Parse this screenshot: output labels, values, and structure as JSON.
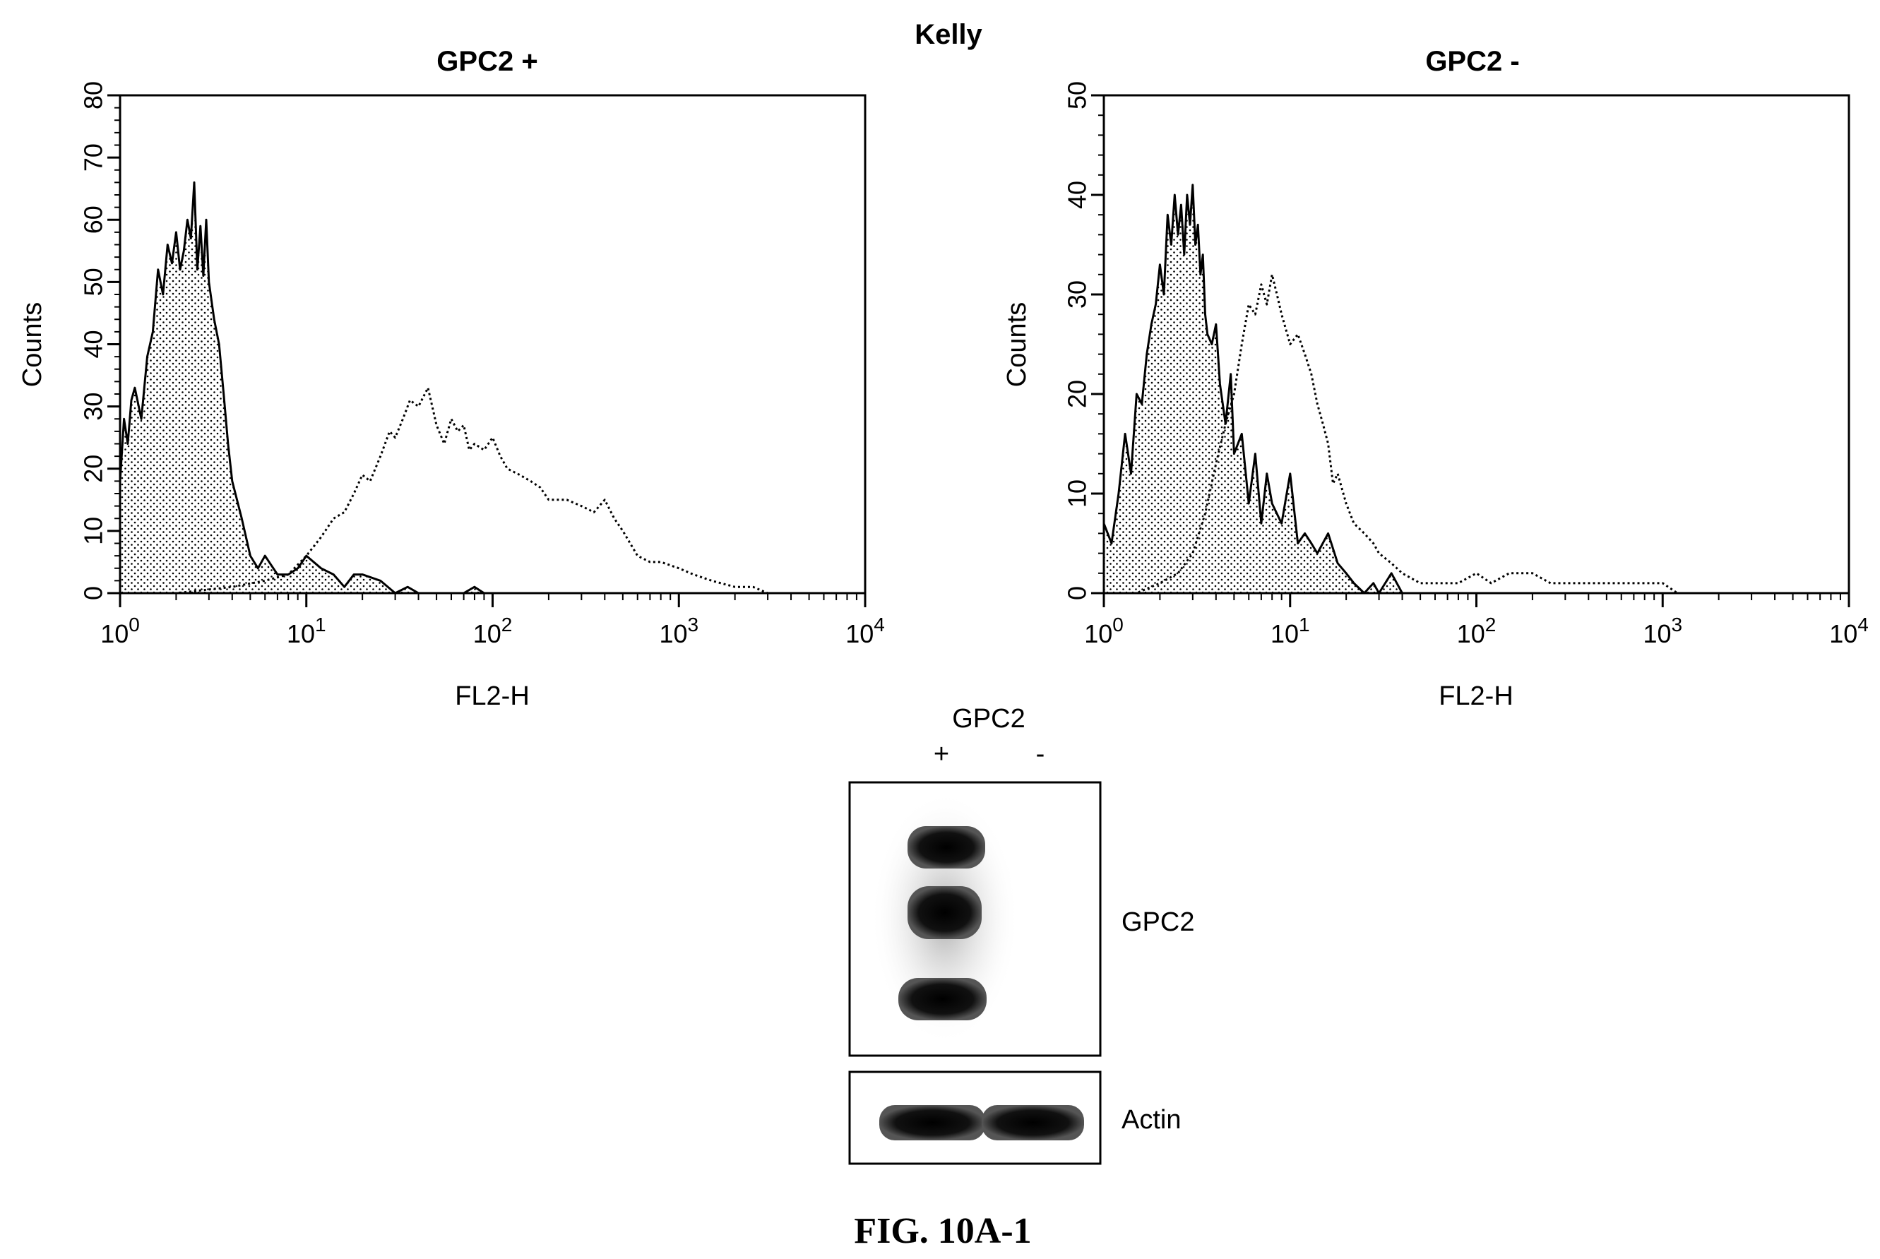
{
  "figure": {
    "caption": "FIG. 10A-1",
    "cell_line": "Kelly"
  },
  "chart_data": [
    {
      "type": "area",
      "panel": "left",
      "title": "GPC2 +",
      "xlabel": "FL2-H",
      "ylabel": "Counts",
      "x_scale": "log",
      "xlim": [
        1,
        10000
      ],
      "ylim": [
        0,
        80
      ],
      "y_ticks": [
        "0",
        "10",
        "20",
        "30",
        "40",
        "50",
        "60",
        "70",
        "80"
      ],
      "x_ticks": [
        {
          "base": "10",
          "exp": "0"
        },
        {
          "base": "10",
          "exp": "1"
        },
        {
          "base": "10",
          "exp": "2"
        },
        {
          "base": "10",
          "exp": "3"
        },
        {
          "base": "10",
          "exp": "4"
        }
      ],
      "series": [
        {
          "style": "solid-filled",
          "x": [
            1.0,
            1.05,
            1.1,
            1.15,
            1.2,
            1.3,
            1.4,
            1.5,
            1.6,
            1.7,
            1.8,
            1.9,
            2.0,
            2.1,
            2.2,
            2.3,
            2.4,
            2.5,
            2.6,
            2.7,
            2.8,
            2.9,
            3.0,
            3.2,
            3.4,
            3.6,
            3.8,
            4.0,
            4.5,
            5.0,
            5.5,
            6.0,
            7.0,
            8.0,
            9.0,
            10.0,
            12.0,
            14.0,
            16.0,
            18.0,
            20.0,
            25.0,
            30.0,
            35.0,
            40.0,
            50.0,
            70.0,
            80.0,
            90.0,
            100.0,
            200.0,
            500.0,
            1000.0,
            10000.0
          ],
          "y": [
            18,
            28,
            24,
            31,
            33,
            28,
            38,
            42,
            52,
            48,
            56,
            53,
            58,
            52,
            55,
            60,
            57,
            66,
            52,
            59,
            51,
            60,
            50,
            44,
            40,
            32,
            24,
            18,
            12,
            6,
            4,
            6,
            3,
            3,
            4,
            6,
            4,
            3,
            1,
            3,
            3,
            2,
            0,
            1,
            0,
            0,
            0,
            1,
            0,
            0,
            0,
            0,
            0,
            0
          ]
        },
        {
          "style": "dotted",
          "x": [
            1.0,
            2.0,
            4.0,
            6.0,
            8.0,
            10.0,
            12.0,
            14.0,
            16.0,
            18.0,
            20.0,
            22.0,
            25.0,
            28.0,
            30.0,
            33.0,
            36.0,
            40.0,
            45.0,
            50.0,
            55.0,
            60.0,
            65.0,
            70.0,
            75.0,
            80.0,
            90.0,
            100.0,
            110.0,
            120.0,
            140.0,
            160.0,
            180.0,
            200.0,
            250.0,
            300.0,
            350.0,
            400.0,
            450.0,
            500.0,
            600.0,
            700.0,
            800.0,
            1000.0,
            1200.0,
            1500.0,
            2000.0,
            2500.0,
            3000.0,
            4000.0,
            10000.0
          ],
          "y": [
            0,
            0,
            1,
            2,
            3,
            6,
            9,
            12,
            13,
            16,
            19,
            18,
            22,
            26,
            25,
            28,
            31,
            30,
            33,
            27,
            24,
            28,
            26,
            27,
            23,
            24,
            23,
            25,
            22,
            20,
            19,
            18,
            17,
            15,
            15,
            14,
            13,
            15,
            12,
            10,
            6,
            5,
            5,
            4,
            3,
            2,
            1,
            1,
            0,
            0,
            0
          ]
        }
      ]
    },
    {
      "type": "area",
      "panel": "right",
      "title": "GPC2 -",
      "xlabel": "FL2-H",
      "ylabel": "Counts",
      "x_scale": "log",
      "xlim": [
        1,
        10000
      ],
      "ylim": [
        0,
        50
      ],
      "y_ticks": [
        "0",
        "10",
        "20",
        "30",
        "40",
        "50"
      ],
      "x_ticks": [
        {
          "base": "10",
          "exp": "0"
        },
        {
          "base": "10",
          "exp": "1"
        },
        {
          "base": "10",
          "exp": "2"
        },
        {
          "base": "10",
          "exp": "3"
        },
        {
          "base": "10",
          "exp": "4"
        }
      ],
      "series": [
        {
          "style": "solid-filled",
          "x": [
            1.0,
            1.1,
            1.2,
            1.3,
            1.4,
            1.5,
            1.6,
            1.7,
            1.8,
            1.9,
            2.0,
            2.1,
            2.2,
            2.3,
            2.4,
            2.5,
            2.6,
            2.7,
            2.8,
            2.9,
            3.0,
            3.1,
            3.2,
            3.3,
            3.4,
            3.5,
            3.6,
            3.8,
            4.0,
            4.2,
            4.5,
            4.8,
            5.0,
            5.5,
            6.0,
            6.5,
            7.0,
            7.5,
            8.0,
            9.0,
            10.0,
            11.0,
            12.0,
            13.0,
            14.0,
            16.0,
            18.0,
            20.0,
            22.0,
            25.0,
            28.0,
            30.0,
            35.0,
            40.0,
            50.0,
            10000.0
          ],
          "y": [
            7,
            5,
            10,
            16,
            12,
            20,
            19,
            24,
            27,
            29,
            33,
            30,
            38,
            35,
            40,
            36,
            39,
            34,
            40,
            37,
            41,
            35,
            37,
            32,
            34,
            28,
            26,
            25,
            27,
            21,
            17,
            22,
            14,
            16,
            9,
            14,
            7,
            12,
            9,
            7,
            12,
            5,
            6,
            5,
            4,
            6,
            3,
            2,
            1,
            0,
            1,
            0,
            2,
            0,
            0,
            0
          ]
        },
        {
          "style": "dotted",
          "x": [
            1.0,
            1.5,
            2.0,
            2.5,
            3.0,
            3.5,
            4.0,
            4.5,
            5.0,
            5.5,
            6.0,
            6.5,
            7.0,
            7.5,
            8.0,
            8.5,
            9.0,
            10.0,
            11.0,
            12.0,
            13.0,
            14.0,
            15.0,
            16.0,
            17.0,
            18.0,
            20.0,
            22.0,
            25.0,
            28.0,
            30.0,
            35.0,
            40.0,
            50.0,
            60.0,
            80.0,
            100.0,
            120.0,
            150.0,
            200.0,
            250.0,
            300.0,
            400.0,
            500.0,
            700.0,
            1000.0,
            1200.0,
            10000.0
          ],
          "y": [
            0,
            0,
            1,
            2,
            4,
            8,
            13,
            17,
            20,
            25,
            29,
            28,
            31,
            29,
            32,
            30,
            28,
            25,
            26,
            24,
            22,
            19,
            17,
            15,
            11,
            12,
            9,
            7,
            6,
            5,
            4,
            3,
            2,
            1,
            1,
            1,
            2,
            1,
            2,
            2,
            1,
            1,
            1,
            1,
            1,
            1,
            0,
            0
          ]
        }
      ]
    }
  ],
  "western_blot": {
    "header_label": "GPC2",
    "lane_labels": [
      "+",
      "-"
    ],
    "band_labels": [
      "GPC2",
      "Actin"
    ]
  }
}
